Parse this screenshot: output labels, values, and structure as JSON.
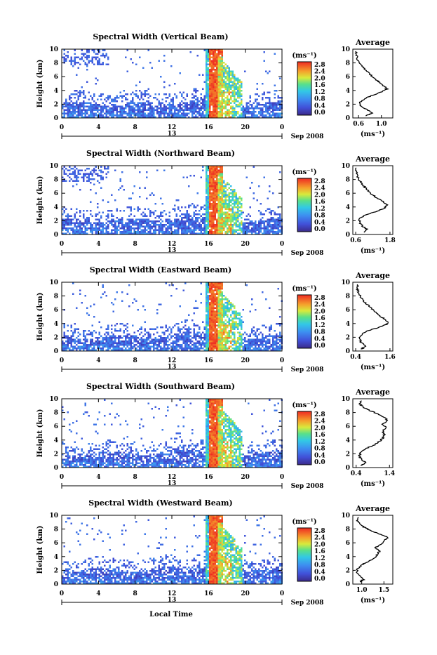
{
  "page": {
    "x_axis_label": "Local Time",
    "date_label": "Sep 2008",
    "day_label": "13"
  },
  "colorbar": {
    "unit": "(ms⁻¹)",
    "ticks": [
      "2.8",
      "2.4",
      "2.0",
      "1.6",
      "1.2",
      "0.8",
      "0.4",
      "0.0"
    ]
  },
  "chart_data": [
    {
      "type": "heatmap",
      "title": "Spectral Width (Vertical Beam)",
      "xlabel": "Local Time",
      "ylabel": "Height (km)",
      "x_ticks": [
        "0",
        "4",
        "8",
        "12",
        "16",
        "20",
        "0"
      ],
      "y_ticks": [
        "0",
        "2",
        "4",
        "6",
        "8",
        "10"
      ],
      "xlim": [
        0,
        24
      ],
      "ylim": [
        0,
        10
      ],
      "profile": {
        "title": "Average",
        "xlabel": "(ms⁻¹)",
        "x_ticks": [
          "0.6",
          "1.0"
        ],
        "xlim": [
          0.5,
          1.2
        ],
        "points": [
          [
            0.72,
            0.3
          ],
          [
            0.85,
            0.7
          ],
          [
            0.75,
            1.2
          ],
          [
            0.65,
            1.7
          ],
          [
            0.62,
            2.2
          ],
          [
            0.7,
            2.8
          ],
          [
            0.85,
            3.3
          ],
          [
            1.0,
            3.8
          ],
          [
            1.1,
            4.2
          ],
          [
            1.05,
            4.6
          ],
          [
            0.98,
            5.1
          ],
          [
            0.9,
            5.6
          ],
          [
            0.82,
            6.2
          ],
          [
            0.75,
            6.8
          ],
          [
            0.68,
            7.4
          ],
          [
            0.62,
            8.0
          ],
          [
            0.58,
            8.6
          ],
          [
            0.56,
            9.2
          ],
          [
            0.55,
            9.8
          ]
        ]
      }
    },
    {
      "type": "heatmap",
      "title": "Spectral Width (Northward Beam)",
      "xlabel": "Local Time",
      "ylabel": "Height (km)",
      "x_ticks": [
        "0",
        "4",
        "8",
        "12",
        "16",
        "20",
        "0"
      ],
      "y_ticks": [
        "0",
        "2",
        "4",
        "6",
        "8",
        "10"
      ],
      "xlim": [
        0,
        24
      ],
      "ylim": [
        0,
        10
      ],
      "profile": {
        "title": "Average",
        "xlabel": "(ms⁻¹)",
        "x_ticks": [
          "0.6",
          "1.8"
        ],
        "xlim": [
          0.5,
          1.9
        ],
        "points": [
          [
            0.9,
            0.3
          ],
          [
            1.0,
            0.7
          ],
          [
            0.85,
            1.2
          ],
          [
            0.75,
            1.7
          ],
          [
            0.72,
            2.2
          ],
          [
            0.9,
            2.8
          ],
          [
            1.3,
            3.3
          ],
          [
            1.6,
            3.8
          ],
          [
            1.7,
            4.3
          ],
          [
            1.55,
            4.8
          ],
          [
            1.35,
            5.3
          ],
          [
            1.15,
            5.9
          ],
          [
            1.0,
            6.5
          ],
          [
            0.85,
            7.2
          ],
          [
            0.72,
            7.9
          ],
          [
            0.65,
            8.6
          ],
          [
            0.62,
            9.2
          ],
          [
            0.6,
            9.8
          ]
        ]
      }
    },
    {
      "type": "heatmap",
      "title": "Spectral Width (Eastward Beam)",
      "xlabel": "Local Time",
      "ylabel": "Height (km)",
      "x_ticks": [
        "0",
        "4",
        "8",
        "12",
        "16",
        "20",
        "0"
      ],
      "y_ticks": [
        "0",
        "2",
        "4",
        "6",
        "8",
        "10"
      ],
      "xlim": [
        0,
        24
      ],
      "ylim": [
        0,
        10
      ],
      "profile": {
        "title": "Average",
        "xlabel": "(ms⁻¹)",
        "x_ticks": [
          "0.4",
          "1.6"
        ],
        "xlim": [
          0.3,
          1.7
        ],
        "points": [
          [
            0.6,
            0.3
          ],
          [
            0.75,
            0.7
          ],
          [
            0.6,
            1.2
          ],
          [
            0.55,
            1.7
          ],
          [
            0.55,
            2.2
          ],
          [
            0.75,
            2.8
          ],
          [
            1.1,
            3.3
          ],
          [
            1.45,
            3.8
          ],
          [
            1.55,
            4.2
          ],
          [
            1.4,
            4.7
          ],
          [
            1.2,
            5.2
          ],
          [
            1.05,
            5.8
          ],
          [
            0.9,
            6.4
          ],
          [
            0.75,
            7.0
          ],
          [
            0.6,
            7.7
          ],
          [
            0.5,
            8.4
          ],
          [
            0.45,
            9.1
          ],
          [
            0.48,
            9.8
          ]
        ]
      }
    },
    {
      "type": "heatmap",
      "title": "Spectral Width (Southward Beam)",
      "xlabel": "Local Time",
      "ylabel": "Height (km)",
      "x_ticks": [
        "0",
        "4",
        "8",
        "12",
        "16",
        "20",
        "0"
      ],
      "y_ticks": [
        "0",
        "2",
        "4",
        "6",
        "8",
        "10"
      ],
      "xlim": [
        0,
        24
      ],
      "ylim": [
        0,
        10
      ],
      "profile": {
        "title": "Average",
        "xlabel": "(ms⁻¹)",
        "x_ticks": [
          "0.4",
          "1.4"
        ],
        "xlim": [
          0.3,
          1.5
        ],
        "points": [
          [
            0.55,
            0.3
          ],
          [
            0.7,
            0.7
          ],
          [
            0.55,
            1.2
          ],
          [
            0.5,
            1.7
          ],
          [
            0.52,
            2.2
          ],
          [
            0.7,
            2.8
          ],
          [
            0.95,
            3.3
          ],
          [
            1.1,
            3.8
          ],
          [
            1.2,
            4.3
          ],
          [
            1.25,
            4.8
          ],
          [
            1.2,
            5.3
          ],
          [
            1.3,
            5.8
          ],
          [
            1.2,
            6.3
          ],
          [
            1.35,
            6.8
          ],
          [
            1.25,
            7.3
          ],
          [
            1.05,
            7.8
          ],
          [
            0.8,
            8.3
          ],
          [
            0.6,
            8.8
          ],
          [
            0.5,
            9.3
          ],
          [
            0.55,
            9.8
          ]
        ]
      }
    },
    {
      "type": "heatmap",
      "title": "Spectral Width (Westward Beam)",
      "xlabel": "Local Time",
      "ylabel": "Height (km)",
      "x_ticks": [
        "0",
        "4",
        "8",
        "12",
        "16",
        "20",
        "0"
      ],
      "y_ticks": [
        "0",
        "2",
        "4",
        "6",
        "8",
        "10"
      ],
      "xlim": [
        0,
        24
      ],
      "ylim": [
        0,
        10
      ],
      "profile": {
        "title": "Average",
        "xlabel": "(ms⁻¹)",
        "x_ticks": [
          "1.0",
          "1.5"
        ],
        "xlim": [
          0.8,
          1.7
        ],
        "points": [
          [
            0.95,
            0.3
          ],
          [
            1.05,
            0.7
          ],
          [
            0.95,
            1.2
          ],
          [
            0.9,
            1.7
          ],
          [
            0.9,
            2.2
          ],
          [
            1.0,
            2.8
          ],
          [
            1.15,
            3.3
          ],
          [
            1.3,
            3.8
          ],
          [
            1.35,
            4.3
          ],
          [
            1.4,
            4.8
          ],
          [
            1.3,
            5.3
          ],
          [
            1.45,
            5.8
          ],
          [
            1.5,
            6.3
          ],
          [
            1.6,
            6.8
          ],
          [
            1.4,
            7.3
          ],
          [
            1.2,
            7.8
          ],
          [
            1.05,
            8.3
          ],
          [
            0.95,
            8.8
          ],
          [
            0.9,
            9.3
          ],
          [
            0.92,
            9.8
          ]
        ]
      }
    }
  ]
}
